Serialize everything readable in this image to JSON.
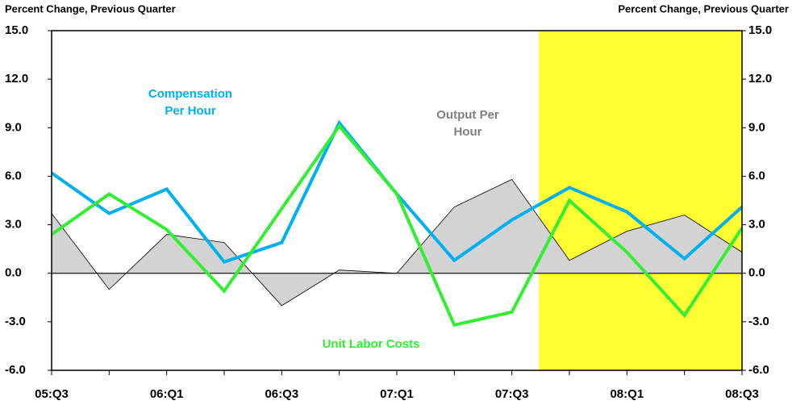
{
  "chart_data": {
    "type": "line",
    "y_label": "Percent Change, Previous Quarter",
    "y2_label": "Percent Change, Previous Quarter",
    "categories": [
      "05:Q3",
      null,
      "06:Q1",
      null,
      "06:Q3",
      null,
      "07:Q1",
      null,
      "07:Q3",
      null,
      "08:Q1",
      null,
      "08:Q3"
    ],
    "ylim": [
      -6,
      15
    ],
    "yticks": [
      {
        "value": -6,
        "label": "-6.0"
      },
      {
        "value": -3,
        "label": "-3.0"
      },
      {
        "value": 0,
        "label": "0.0"
      },
      {
        "value": 3,
        "label": "3.0"
      },
      {
        "value": 6,
        "label": "6.0"
      },
      {
        "value": 9,
        "label": "9.0"
      },
      {
        "value": 12,
        "label": "12.0"
      },
      {
        "value": 15,
        "label": "15.0"
      }
    ],
    "y2lim": [
      -6,
      15
    ],
    "y2ticks": [
      {
        "value": -6,
        "label": "-6.0"
      },
      {
        "value": -3,
        "label": "-3.0"
      },
      {
        "value": 0,
        "label": "0.0"
      },
      {
        "value": 3,
        "label": "3.0"
      },
      {
        "value": 6,
        "label": "6.0"
      },
      {
        "value": 9,
        "label": "9.0"
      },
      {
        "value": 12,
        "label": "12.0"
      },
      {
        "value": 15,
        "label": "15.0"
      }
    ],
    "shade": {
      "from": 8.47,
      "to": 12,
      "color": "#ffff33"
    },
    "series": [
      {
        "name": "Output Per Hour",
        "kind": "area",
        "color": "#808080",
        "fill": "#d3d3d3",
        "values": [
          3.7,
          -1.0,
          2.4,
          1.9,
          -2.0,
          0.2,
          0.0,
          4.1,
          5.8,
          0.8,
          2.6,
          3.6,
          1.3
        ]
      },
      {
        "name": "Compensation Per Hour",
        "kind": "line",
        "color": "#00b0f0",
        "values": [
          6.2,
          3.7,
          5.2,
          0.7,
          1.9,
          9.3,
          4.9,
          0.8,
          3.3,
          5.3,
          3.8,
          0.9,
          4.1
        ]
      },
      {
        "name": "Unit Labor Costs",
        "kind": "line",
        "color": "#33ee33",
        "values": [
          2.4,
          4.9,
          2.7,
          -1.1,
          4.0,
          9.1,
          4.9,
          -3.2,
          -2.4,
          4.5,
          1.3,
          -2.6,
          2.8
        ]
      }
    ]
  }
}
